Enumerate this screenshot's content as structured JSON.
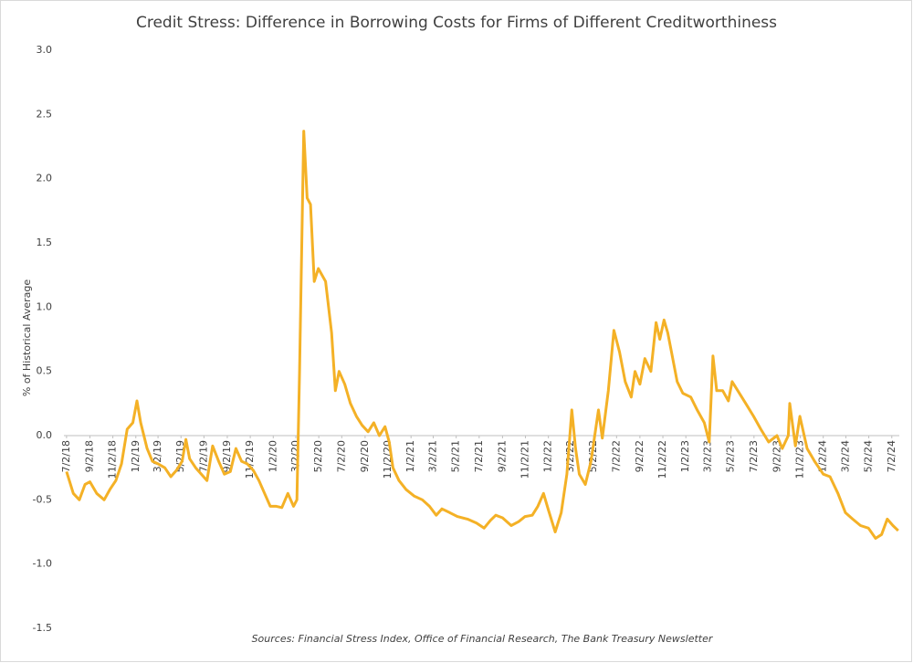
{
  "chart_data": {
    "type": "line",
    "title": "Credit Stress: Difference in Borrowing Costs for Firms of Different Creditworthiness",
    "y_label": "% of Historical Average",
    "note": "Sources: Financial Stress Index, Office of Financial Research, The Bank Treasury Newsletter",
    "xlim": [
      "6/25/18",
      "7/22/24"
    ],
    "xticks": [
      "7/2/18",
      "9/2/18",
      "11/2/18",
      "1/2/19",
      "3/2/19",
      "5/2/19",
      "7/2/19",
      "9/2/19",
      "11/2/19",
      "1/2/20",
      "3/2/20",
      "5/2/20",
      "7/2/20",
      "9/2/20",
      "11/2/20",
      "1/2/21",
      "3/2/21",
      "5/2/21",
      "7/2/21",
      "9/2/21",
      "11/2/21",
      "1/2/22",
      "3/2/22",
      "5/2/22",
      "7/2/22",
      "9/2/22",
      "11/2/22",
      "1/2/23",
      "3/2/23",
      "5/2/23",
      "7/2/23",
      "9/2/23",
      "11/2/23",
      "1/2/24",
      "3/2/24",
      "5/2/24",
      "7/2/24"
    ],
    "ylim": [
      -1.5,
      3.0
    ],
    "yticks": [
      {
        "value": -1.5,
        "label": "-1.5"
      },
      {
        "value": -1,
        "label": "-1.0"
      },
      -0.5,
      {
        "value": 0,
        "label": "0.0"
      },
      0.5,
      {
        "value": 1,
        "label": "1.0"
      },
      1.5,
      {
        "value": 2,
        "label": "2.0"
      },
      2.5,
      {
        "value": 3,
        "label": "3.0"
      }
    ],
    "grid": false,
    "x": [
      "7/2/18",
      "7/20/18",
      "8/5/18",
      "8/20/18",
      "9/2/18",
      "9/20/18",
      "10/10/18",
      "10/25/18",
      "11/10/18",
      "11/25/18",
      "12/10/18",
      "12/25/18",
      "1/5/19",
      "1/15/19",
      "2/1/19",
      "2/15/19",
      "3/2/19",
      "3/20/19",
      "4/5/19",
      "4/20/19",
      "5/5/19",
      "5/15/19",
      "5/25/19",
      "6/10/19",
      "6/25/19",
      "7/10/19",
      "7/25/19",
      "8/10/19",
      "8/25/19",
      "9/10/19",
      "9/25/19",
      "10/10/19",
      "10/25/19",
      "11/10/19",
      "11/25/19",
      "12/10/19",
      "12/25/19",
      "1/10/20",
      "1/25/20",
      "2/10/20",
      "2/25/20",
      "3/5/20",
      "3/12/20",
      "3/23/20",
      "4/1/20",
      "4/10/20",
      "4/20/20",
      "5/1/20",
      "5/20/20",
      "6/5/20",
      "6/15/20",
      "6/25/20",
      "7/10/20",
      "7/25/20",
      "8/10/20",
      "8/25/20",
      "9/10/20",
      "9/25/20",
      "10/10/20",
      "10/25/20",
      "11/5/20",
      "11/15/20",
      "12/1/20",
      "12/20/20",
      "1/10/21",
      "2/1/21",
      "2/20/21",
      "3/10/21",
      "3/25/21",
      "4/15/21",
      "5/5/21",
      "6/1/21",
      "6/25/21",
      "7/15/21",
      "8/1/21",
      "8/15/21",
      "9/2/21",
      "9/25/21",
      "10/15/21",
      "11/1/21",
      "11/20/21",
      "12/5/21",
      "12/20/21",
      "1/2/22",
      "1/20/22",
      "2/5/22",
      "2/20/22",
      "3/5/22",
      "3/15/22",
      "3/25/22",
      "4/10/22",
      "4/25/22",
      "5/5/22",
      "5/15/22",
      "5/25/22",
      "6/10/22",
      "6/25/22",
      "7/10/22",
      "7/25/22",
      "8/10/22",
      "8/20/22",
      "9/2/22",
      "9/15/22",
      "10/1/22",
      "10/15/22",
      "10/25/22",
      "11/5/22",
      "11/15/22",
      "11/25/22",
      "12/10/22",
      "12/25/22",
      "1/15/23",
      "2/1/23",
      "2/20/23",
      "3/5/23",
      "3/15/23",
      "3/25/23",
      "4/10/23",
      "4/25/23",
      "5/5/23",
      "5/20/23",
      "6/10/23",
      "7/1/23",
      "7/20/23",
      "8/10/23",
      "9/1/23",
      "9/15/23",
      "10/1/23",
      "10/5/23",
      "10/20/23",
      "11/1/23",
      "11/20/23",
      "12/10/23",
      "1/2/24",
      "1/20/24",
      "2/10/24",
      "3/1/24",
      "3/20/24",
      "4/10/24",
      "5/1/24",
      "5/20/24",
      "6/5/24",
      "6/20/24",
      "7/5/24",
      "7/19/24"
    ],
    "series": [
      {
        "name": "Credit Stress",
        "color": "#f4b126",
        "values": [
          -0.28,
          -0.45,
          -0.5,
          -0.38,
          -0.36,
          -0.45,
          -0.5,
          -0.42,
          -0.35,
          -0.22,
          0.05,
          0.1,
          0.27,
          0.1,
          -0.1,
          -0.2,
          -0.22,
          -0.25,
          -0.32,
          -0.27,
          -0.2,
          -0.03,
          -0.18,
          -0.25,
          -0.3,
          -0.35,
          -0.08,
          -0.2,
          -0.3,
          -0.28,
          -0.1,
          -0.2,
          -0.22,
          -0.27,
          -0.35,
          -0.45,
          -0.55,
          -0.55,
          -0.56,
          -0.45,
          -0.55,
          -0.5,
          0.5,
          2.37,
          1.85,
          1.8,
          1.2,
          1.3,
          1.2,
          0.8,
          0.35,
          0.5,
          0.4,
          0.25,
          0.15,
          0.08,
          0.03,
          0.1,
          0.0,
          0.07,
          -0.05,
          -0.25,
          -0.35,
          -0.42,
          -0.47,
          -0.5,
          -0.55,
          -0.62,
          -0.57,
          -0.6,
          -0.63,
          -0.65,
          -0.68,
          -0.72,
          -0.66,
          -0.62,
          -0.64,
          -0.7,
          -0.67,
          -0.63,
          -0.62,
          -0.55,
          -0.45,
          -0.58,
          -0.75,
          -0.6,
          -0.3,
          0.2,
          -0.1,
          -0.3,
          -0.38,
          -0.2,
          0.0,
          0.2,
          -0.02,
          0.35,
          0.82,
          0.65,
          0.42,
          0.3,
          0.5,
          0.4,
          0.6,
          0.5,
          0.88,
          0.75,
          0.9,
          0.8,
          0.65,
          0.42,
          0.33,
          0.3,
          0.2,
          0.1,
          -0.05,
          0.62,
          0.35,
          0.35,
          0.27,
          0.42,
          0.35,
          0.25,
          0.15,
          0.05,
          -0.05,
          0.0,
          -0.1,
          0.0,
          0.25,
          -0.08,
          0.15,
          -0.1,
          -0.2,
          -0.3,
          -0.32,
          -0.45,
          -0.6,
          -0.65,
          -0.7,
          -0.72,
          -0.8,
          -0.77,
          -0.65,
          -0.7,
          -0.74
        ]
      }
    ]
  }
}
